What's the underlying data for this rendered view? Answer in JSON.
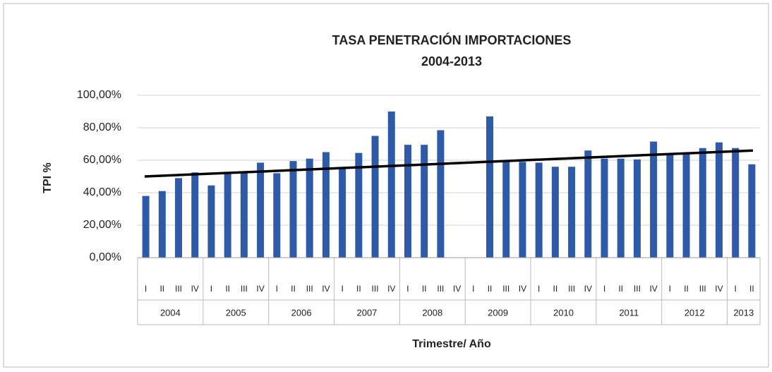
{
  "chart_data": {
    "type": "bar",
    "title": "TASA PENETRACIÓN IMPORTACIONES",
    "subtitle": "2004-2013",
    "y_label": "TPI %",
    "x_label": "Trimestre/ Año",
    "color": "#2e5aa8",
    "trend_color": "#000000",
    "grid": true,
    "ylim": [
      0,
      100
    ],
    "yticks": [
      {
        "value": 0,
        "label": "0,00%"
      },
      {
        "value": 20,
        "label": "20,00%"
      },
      {
        "value": 40,
        "label": "40,00%"
      },
      {
        "value": 60,
        "label": "60,00%"
      },
      {
        "value": 80,
        "label": "80,00%"
      },
      {
        "value": 100,
        "label": "100,00%"
      }
    ],
    "groups": [
      {
        "name": "2004",
        "categories": [
          "I",
          "II",
          "III",
          "IV"
        ],
        "values": [
          38,
          41,
          49,
          52.5
        ]
      },
      {
        "name": "2005",
        "categories": [
          "I",
          "II",
          "III",
          "IV"
        ],
        "values": [
          44.5,
          51.5,
          52.5,
          58.5
        ]
      },
      {
        "name": "2006",
        "categories": [
          "I",
          "II",
          "III",
          "IV"
        ],
        "values": [
          52,
          59.5,
          61,
          65
        ]
      },
      {
        "name": "2007",
        "categories": [
          "I",
          "II",
          "III",
          "IV"
        ],
        "values": [
          55,
          64.5,
          75,
          90
        ]
      },
      {
        "name": "2008",
        "categories": [
          "I",
          "II",
          "III",
          "IV"
        ],
        "values": [
          69.5,
          69.5,
          78.5,
          null
        ]
      },
      {
        "name": "2009",
        "categories": [
          "I",
          "II",
          "III",
          "IV"
        ],
        "values": [
          null,
          87,
          59,
          59
        ]
      },
      {
        "name": "2010",
        "categories": [
          "I",
          "II",
          "III",
          "IV"
        ],
        "values": [
          58.5,
          56,
          56,
          66
        ]
      },
      {
        "name": "2011",
        "categories": [
          "I",
          "II",
          "III",
          "IV"
        ],
        "values": [
          61,
          61,
          60.5,
          71.5
        ]
      },
      {
        "name": "2012",
        "categories": [
          "I",
          "II",
          "III",
          "IV"
        ],
        "values": [
          63.5,
          64,
          67.5,
          71
        ]
      },
      {
        "name": "2013",
        "categories": [
          "I",
          "II"
        ],
        "values": [
          67.5,
          57.5
        ]
      }
    ],
    "trendline": [
      50,
      66
    ]
  }
}
